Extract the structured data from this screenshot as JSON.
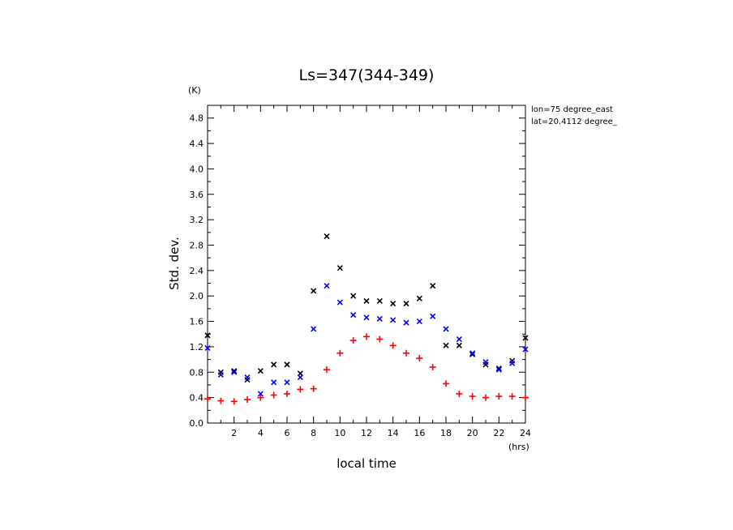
{
  "chart_data": {
    "type": "scatter",
    "title": "Ls=347(344-349)",
    "xlabel": "local time",
    "ylabel": "Std. dev.",
    "x_unit": "(hrs)",
    "y_unit": "(K)",
    "xlim": [
      0,
      24
    ],
    "ylim": [
      0,
      5.0
    ],
    "x_tick_labels": [
      "2",
      "4",
      "6",
      "8",
      "10",
      "12",
      "14",
      "16",
      "18",
      "20",
      "22",
      "24"
    ],
    "y_tick_labels": [
      "0.0",
      "0.4",
      "0.8",
      "1.2",
      "1.6",
      "2.0",
      "2.4",
      "2.8",
      "3.2",
      "3.6",
      "4.0",
      "4.4",
      "4.8"
    ],
    "annotations": [
      "lon=75 degree_east",
      "lat=20.4112 degree_"
    ],
    "grid": false,
    "x": [
      0,
      1,
      2,
      3,
      4,
      5,
      6,
      7,
      8,
      9,
      10,
      11,
      12,
      13,
      14,
      15,
      16,
      17,
      18,
      19,
      20,
      21,
      22,
      23,
      24
    ],
    "series": [
      {
        "marker": "x",
        "color": "#000000",
        "values": [
          1.38,
          0.8,
          0.82,
          0.68,
          0.82,
          0.92,
          0.92,
          0.78,
          2.08,
          2.94,
          2.44,
          2.0,
          1.92,
          1.92,
          1.88,
          1.88,
          1.96,
          2.16,
          1.22,
          1.22,
          1.08,
          0.92,
          0.86,
          0.98,
          1.34
        ]
      },
      {
        "marker": "x",
        "color": "#0000ff",
        "values": [
          1.18,
          0.76,
          0.8,
          0.72,
          0.46,
          0.64,
          0.64,
          0.72,
          1.48,
          2.16,
          1.9,
          1.7,
          1.66,
          1.64,
          1.62,
          1.58,
          1.6,
          1.68,
          1.48,
          1.32,
          1.1,
          0.96,
          0.84,
          0.94,
          1.16
        ]
      },
      {
        "marker": "+",
        "color": "#ff0000",
        "values": [
          0.38,
          0.35,
          0.34,
          0.37,
          0.4,
          0.44,
          0.46,
          0.53,
          0.54,
          0.84,
          1.1,
          1.3,
          1.36,
          1.32,
          1.22,
          1.1,
          1.02,
          0.88,
          0.62,
          0.46,
          0.42,
          0.4,
          0.42,
          0.42,
          0.4
        ]
      }
    ]
  }
}
